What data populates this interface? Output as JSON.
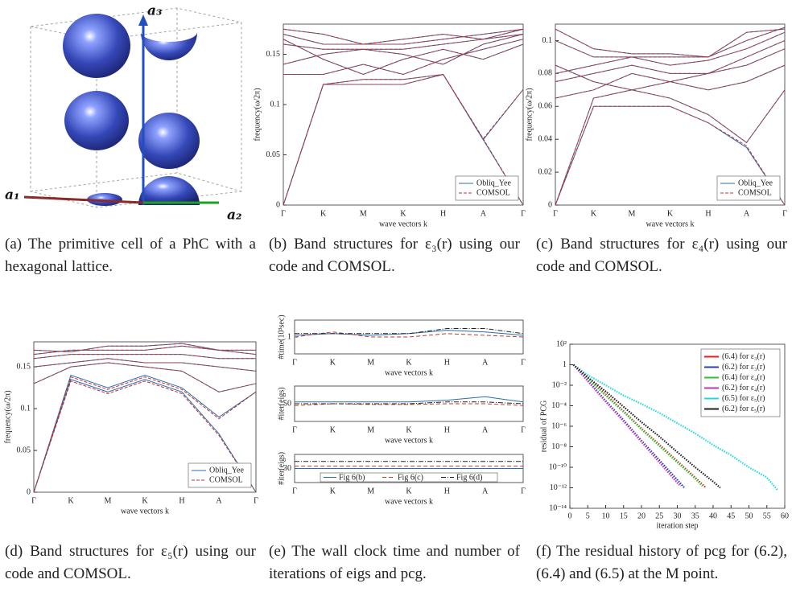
{
  "cell_diagram": {
    "labels": [
      "a₃",
      "a₁",
      "a₂"
    ]
  },
  "captions": {
    "a": "(a) The primitive cell of a PhC with a hexagonal lattice.",
    "b": "(b) Band structures for ε₃(r) using our code and COMSOL.",
    "c": "(c) Band structures for ε₄(r) using our code and COMSOL.",
    "d": "(d) Band structures for ε₅(r) using our code and COMSOL.",
    "e": "(e) The wall clock time and number of iterations of eigs and pcg.",
    "f": "(f) The residual history of pcg for (6.2), (6.4) and (6.5) at the M point."
  },
  "chart_data": [
    {
      "type": "band",
      "categories": [
        "Γ",
        "K",
        "M",
        "K",
        "H",
        "A",
        "Γ"
      ],
      "xlabel": "wave vectors k",
      "ylabel": "frequency(ω/2π)",
      "ylim": [
        0,
        0.18
      ],
      "yticks": [
        0,
        0.05,
        0.1,
        0.15
      ],
      "legend": "lower right",
      "series": [
        {
          "name": "Obliq_Yee",
          "color": "#2b6cb0",
          "dashed": false,
          "bands": [
            [
              0,
              0.12,
              0.12,
              0.12,
              0.13,
              0.065,
              0
            ],
            [
              0,
              0.12,
              0.125,
              0.125,
              0.13,
              0.065,
              0.115
            ],
            [
              0.13,
              0.13,
              0.14,
              0.13,
              0.145,
              0.155,
              0.165
            ],
            [
              0.14,
              0.15,
              0.155,
              0.15,
              0.14,
              0.16,
              0.17
            ],
            [
              0.16,
              0.155,
              0.155,
              0.155,
              0.16,
              0.165,
              0.17
            ],
            [
              0.17,
              0.16,
              0.16,
              0.16,
              0.165,
              0.17,
              0.175
            ],
            [
              0.175,
              0.17,
              0.16,
              0.165,
              0.17,
              0.165,
              0.175
            ],
            [
              0.165,
              0.145,
              0.13,
              0.145,
              0.155,
              0.145,
              0.16
            ]
          ]
        },
        {
          "name": "COMSOL",
          "color": "#b83232",
          "dashed": true,
          "bands": [
            [
              0,
              0.12,
              0.12,
              0.12,
              0.13,
              0.066,
              0
            ],
            [
              0,
              0.12,
              0.125,
              0.125,
              0.13,
              0.066,
              0.115
            ],
            [
              0.13,
              0.13,
              0.14,
              0.13,
              0.145,
              0.155,
              0.165
            ],
            [
              0.14,
              0.15,
              0.155,
              0.15,
              0.14,
              0.16,
              0.17
            ],
            [
              0.16,
              0.155,
              0.155,
              0.155,
              0.16,
              0.165,
              0.17
            ],
            [
              0.17,
              0.16,
              0.16,
              0.16,
              0.165,
              0.17,
              0.175
            ],
            [
              0.175,
              0.17,
              0.16,
              0.165,
              0.17,
              0.165,
              0.175
            ],
            [
              0.165,
              0.145,
              0.13,
              0.145,
              0.155,
              0.145,
              0.16
            ]
          ]
        }
      ]
    },
    {
      "type": "band",
      "categories": [
        "Γ",
        "K",
        "M",
        "K",
        "H",
        "A",
        "Γ"
      ],
      "xlabel": "wave vectors k",
      "ylabel": "frequency(ω/2π)",
      "ylim": [
        0,
        0.11
      ],
      "yticks": [
        0,
        0.02,
        0.04,
        0.06,
        0.08,
        0.1
      ],
      "legend": "lower right",
      "series": [
        {
          "name": "Obliq_Yee",
          "color": "#2b6cb0",
          "dashed": false,
          "bands": [
            [
              0,
              0.06,
              0.06,
              0.06,
              0.05,
              0.035,
              0
            ],
            [
              0,
              0.065,
              0.07,
              0.065,
              0.055,
              0.038,
              0.07
            ],
            [
              0.065,
              0.07,
              0.08,
              0.075,
              0.07,
              0.075,
              0.085
            ],
            [
              0.075,
              0.08,
              0.085,
              0.08,
              0.08,
              0.09,
              0.1
            ],
            [
              0.08,
              0.085,
              0.09,
              0.085,
              0.088,
              0.095,
              0.105
            ],
            [
              0.1,
              0.09,
              0.09,
              0.09,
              0.09,
              0.1,
              0.108
            ],
            [
              0.107,
              0.095,
              0.092,
              0.092,
              0.09,
              0.105,
              0.107
            ],
            [
              0.085,
              0.075,
              0.07,
              0.075,
              0.08,
              0.085,
              0.095
            ]
          ]
        },
        {
          "name": "COMSOL",
          "color": "#b83232",
          "dashed": true,
          "bands": [
            [
              0,
              0.06,
              0.06,
              0.06,
              0.05,
              0.036,
              0
            ],
            [
              0,
              0.065,
              0.07,
              0.065,
              0.055,
              0.038,
              0.07
            ],
            [
              0.065,
              0.07,
              0.08,
              0.075,
              0.07,
              0.075,
              0.085
            ],
            [
              0.075,
              0.08,
              0.085,
              0.08,
              0.08,
              0.09,
              0.1
            ],
            [
              0.08,
              0.085,
              0.09,
              0.085,
              0.088,
              0.095,
              0.105
            ],
            [
              0.1,
              0.09,
              0.09,
              0.09,
              0.09,
              0.1,
              0.108
            ],
            [
              0.107,
              0.095,
              0.092,
              0.092,
              0.09,
              0.105,
              0.107
            ],
            [
              0.085,
              0.075,
              0.07,
              0.075,
              0.08,
              0.085,
              0.095
            ]
          ]
        }
      ]
    },
    {
      "type": "band",
      "categories": [
        "Γ",
        "K",
        "M",
        "K",
        "H",
        "A",
        "Γ"
      ],
      "xlabel": "wave vectors k",
      "ylabel": "frequency(ω/2π)",
      "ylim": [
        0,
        0.18
      ],
      "yticks": [
        0,
        0.05,
        0.1,
        0.15
      ],
      "legend": "lower right",
      "series": [
        {
          "name": "Obliq_Yee",
          "color": "#2b6cb0",
          "dashed": false,
          "bands": [
            [
              0,
              0.135,
              0.12,
              0.135,
              0.12,
              0.07,
              0
            ],
            [
              0,
              0.14,
              0.125,
              0.14,
              0.125,
              0.09,
              0.12
            ],
            [
              0.13,
              0.15,
              0.155,
              0.15,
              0.145,
              0.12,
              0.13
            ],
            [
              0.15,
              0.155,
              0.16,
              0.155,
              0.155,
              0.15,
              0.145
            ],
            [
              0.16,
              0.165,
              0.165,
              0.165,
              0.165,
              0.16,
              0.16
            ],
            [
              0.165,
              0.17,
              0.17,
              0.17,
              0.175,
              0.17,
              0.165
            ],
            [
              0.17,
              0.168,
              0.175,
              0.175,
              0.178,
              0.17,
              0.17
            ]
          ]
        },
        {
          "name": "COMSOL",
          "color": "#b83232",
          "dashed": true,
          "bands": [
            [
              0,
              0.133,
              0.118,
              0.133,
              0.118,
              0.068,
              0
            ],
            [
              0,
              0.138,
              0.123,
              0.138,
              0.123,
              0.088,
              0.12
            ],
            [
              0.13,
              0.15,
              0.155,
              0.15,
              0.145,
              0.12,
              0.13
            ],
            [
              0.15,
              0.155,
              0.16,
              0.155,
              0.155,
              0.15,
              0.145
            ],
            [
              0.16,
              0.165,
              0.165,
              0.165,
              0.165,
              0.16,
              0.16
            ],
            [
              0.165,
              0.17,
              0.17,
              0.17,
              0.175,
              0.17,
              0.165
            ],
            [
              0.17,
              0.168,
              0.175,
              0.175,
              0.178,
              0.17,
              0.17
            ]
          ]
        }
      ]
    },
    {
      "type": "line",
      "categories": [
        "Γ",
        "K",
        "M",
        "K",
        "H",
        "A",
        "Γ"
      ],
      "xlabel": "wave vectors k",
      "ylabel": "#time(10³sec)",
      "ylim": [
        0,
        2
      ],
      "yticks": [
        1
      ],
      "series": [
        {
          "name": "Fig 6(b)",
          "color": "#2b6cb0",
          "dash": "",
          "values": [
            1.1,
            1.2,
            1.1,
            1.2,
            1.4,
            1.3,
            1.1
          ]
        },
        {
          "name": "Fig 6(c)",
          "color": "#c0392b",
          "dash": "5 3",
          "values": [
            1.0,
            1.3,
            1.0,
            1.0,
            1.2,
            1.1,
            1.0
          ]
        },
        {
          "name": "Fig 6(d)",
          "color": "#222222",
          "dash": "6 2 1 2",
          "values": [
            1.2,
            1.2,
            1.2,
            1.2,
            1.5,
            1.5,
            1.2
          ]
        }
      ]
    },
    {
      "type": "line",
      "categories": [
        "Γ",
        "K",
        "M",
        "K",
        "H",
        "A",
        "Γ"
      ],
      "xlabel": "wave vectors k",
      "ylabel": "#iter(eigs)",
      "ylim": [
        0,
        100
      ],
      "yticks": [
        50
      ],
      "series": [
        {
          "name": "Fig 6(b)",
          "color": "#2b6cb0",
          "dash": "",
          "values": [
            55,
            55,
            55,
            55,
            60,
            70,
            55
          ]
        },
        {
          "name": "Fig 6(c)",
          "color": "#c0392b",
          "dash": "5 3",
          "values": [
            45,
            50,
            48,
            48,
            50,
            50,
            45
          ]
        },
        {
          "name": "Fig 6(d)",
          "color": "#222222",
          "dash": "6 2 1 2",
          "values": [
            50,
            50,
            50,
            50,
            55,
            55,
            50
          ]
        }
      ]
    },
    {
      "type": "line",
      "categories": [
        "Γ",
        "K",
        "M",
        "K",
        "H",
        "A",
        "Γ"
      ],
      "xlabel": "wave vectors k",
      "ylabel": "#iter(eigs)",
      "ylim": [
        0,
        60
      ],
      "yticks": [
        30
      ],
      "legend": "bottom",
      "series": [
        {
          "name": "Fig 6(b)",
          "color": "#2b6cb0",
          "dash": "",
          "values": [
            30,
            30,
            30,
            30,
            30,
            30,
            30
          ]
        },
        {
          "name": "Fig 6(c)",
          "color": "#c0392b",
          "dash": "5 3",
          "values": [
            35,
            35,
            35,
            35,
            35,
            35,
            35
          ]
        },
        {
          "name": "Fig 6(d)",
          "color": "#222222",
          "dash": "6 2 1 2",
          "values": [
            45,
            45,
            45,
            45,
            45,
            45,
            45
          ]
        }
      ]
    },
    {
      "type": "semilog",
      "xlabel": "iteration step",
      "ylabel": "residual of PCG",
      "log_y": true,
      "legend": "upper right",
      "xlim": [
        0,
        60
      ],
      "xticks": [
        0,
        5,
        10,
        15,
        20,
        25,
        30,
        35,
        40,
        45,
        50,
        55,
        60
      ],
      "ylim": [
        1e-14,
        100
      ],
      "yticks": [
        {
          "value": 100,
          "label": "10²"
        },
        1,
        {
          "value": 0.01,
          "label": "10⁻²"
        },
        {
          "value": 0.0001,
          "label": "10⁻⁴"
        },
        {
          "value": 1e-06,
          "label": "10⁻⁶"
        },
        {
          "value": 1e-08,
          "label": "10⁻⁸"
        },
        {
          "value": 1e-10,
          "label": "10⁻¹⁰"
        },
        {
          "value": 1e-12,
          "label": "10⁻¹²"
        },
        {
          "value": 1e-14,
          "label": "10⁻¹⁴"
        }
      ],
      "series": [
        {
          "name": "(6.4) for ε₃(r)",
          "color": "#e02020",
          "x": [
            1,
            5,
            10,
            15,
            20,
            25,
            30,
            35,
            38
          ],
          "values": [
            1,
            0.05,
            0.0013,
            3e-05,
            6e-07,
            1.6e-08,
            4e-10,
            1e-11,
            1e-12
          ]
        },
        {
          "name": "(6.2) for ε₃(r)",
          "color": "#1f3fbf",
          "x": [
            1,
            5,
            10,
            15,
            20,
            25,
            30,
            32
          ],
          "values": [
            1,
            0.03,
            0.0003,
            4e-06,
            4e-08,
            5e-10,
            6e-12,
            1e-12
          ]
        },
        {
          "name": "(6.4) for ε₄(r)",
          "color": "#30c030",
          "x": [
            1,
            5,
            10,
            15,
            20,
            25,
            30,
            35,
            37
          ],
          "values": [
            1,
            0.04,
            0.001,
            2.5e-05,
            5e-07,
            1.2e-08,
            3e-10,
            8e-12,
            1.5e-12
          ]
        },
        {
          "name": "(6.2) for ε₄(r)",
          "color": "#c030c0",
          "x": [
            1,
            5,
            10,
            15,
            20,
            25,
            30,
            31
          ],
          "values": [
            1,
            0.025,
            0.00025,
            3e-06,
            3e-08,
            3e-10,
            3e-12,
            1.5e-12
          ]
        },
        {
          "name": "(6.5) for ε₅(r)",
          "color": "#20d8e0",
          "x": [
            1,
            5,
            10,
            15,
            20,
            25,
            30,
            35,
            40,
            45,
            50,
            55,
            58
          ],
          "values": [
            1,
            0.1,
            0.01,
            0.001,
            0.00015,
            2e-05,
            2e-06,
            2e-07,
            1.5e-08,
            1.5e-09,
            1e-10,
            1e-11,
            6e-13
          ]
        },
        {
          "name": "(6.2) for ε₅(r)",
          "color": "#202020",
          "x": [
            1,
            5,
            10,
            15,
            20,
            25,
            30,
            35,
            40,
            42
          ],
          "values": [
            1,
            0.06,
            0.0025,
            8e-05,
            2.5e-06,
            1e-07,
            3e-09,
            1e-10,
            4e-12,
            1e-12
          ]
        }
      ]
    }
  ]
}
